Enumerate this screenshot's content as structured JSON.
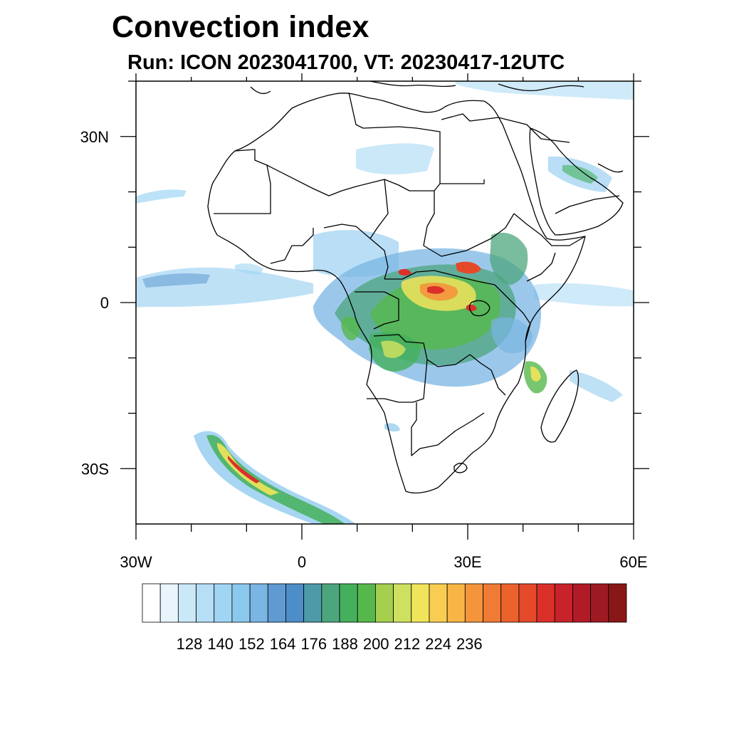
{
  "title": "Convection index",
  "subtitle": "Run: ICON 2023041700,  VT: 20230417-12UTC",
  "map": {
    "lon_range": [
      -30,
      60
    ],
    "lat_range": [
      -40,
      40
    ],
    "x_ticks": [
      {
        "lon": -30,
        "label": "30W"
      },
      {
        "lon": 0,
        "label": "0"
      },
      {
        "lon": 30,
        "label": "30E"
      },
      {
        "lon": 60,
        "label": "60E"
      }
    ],
    "y_ticks": [
      {
        "lat": 30,
        "label": "30N"
      },
      {
        "lat": 0,
        "label": "0"
      },
      {
        "lat": -30,
        "label": "30S"
      }
    ]
  },
  "colorbar": {
    "colors": [
      "#ffffff",
      "#e9f5fc",
      "#cbe8f8",
      "#b6def6",
      "#a0d6f4",
      "#8bc8ee",
      "#7ab5e3",
      "#5f9bd2",
      "#4d8dc8",
      "#4e9aa8",
      "#4ca67d",
      "#44b05b",
      "#56b84c",
      "#a6cf4e",
      "#cde060",
      "#f0e45a",
      "#f8cd52",
      "#f6b545",
      "#f4953c",
      "#ef7b34",
      "#ea632c",
      "#e44a2a",
      "#db3029",
      "#c8232b",
      "#b01b27",
      "#9e1a22",
      "#8a1717"
    ],
    "tick_labels": [
      "128",
      "140",
      "152",
      "164",
      "176",
      "188",
      "200",
      "212",
      "224",
      "236"
    ]
  }
}
